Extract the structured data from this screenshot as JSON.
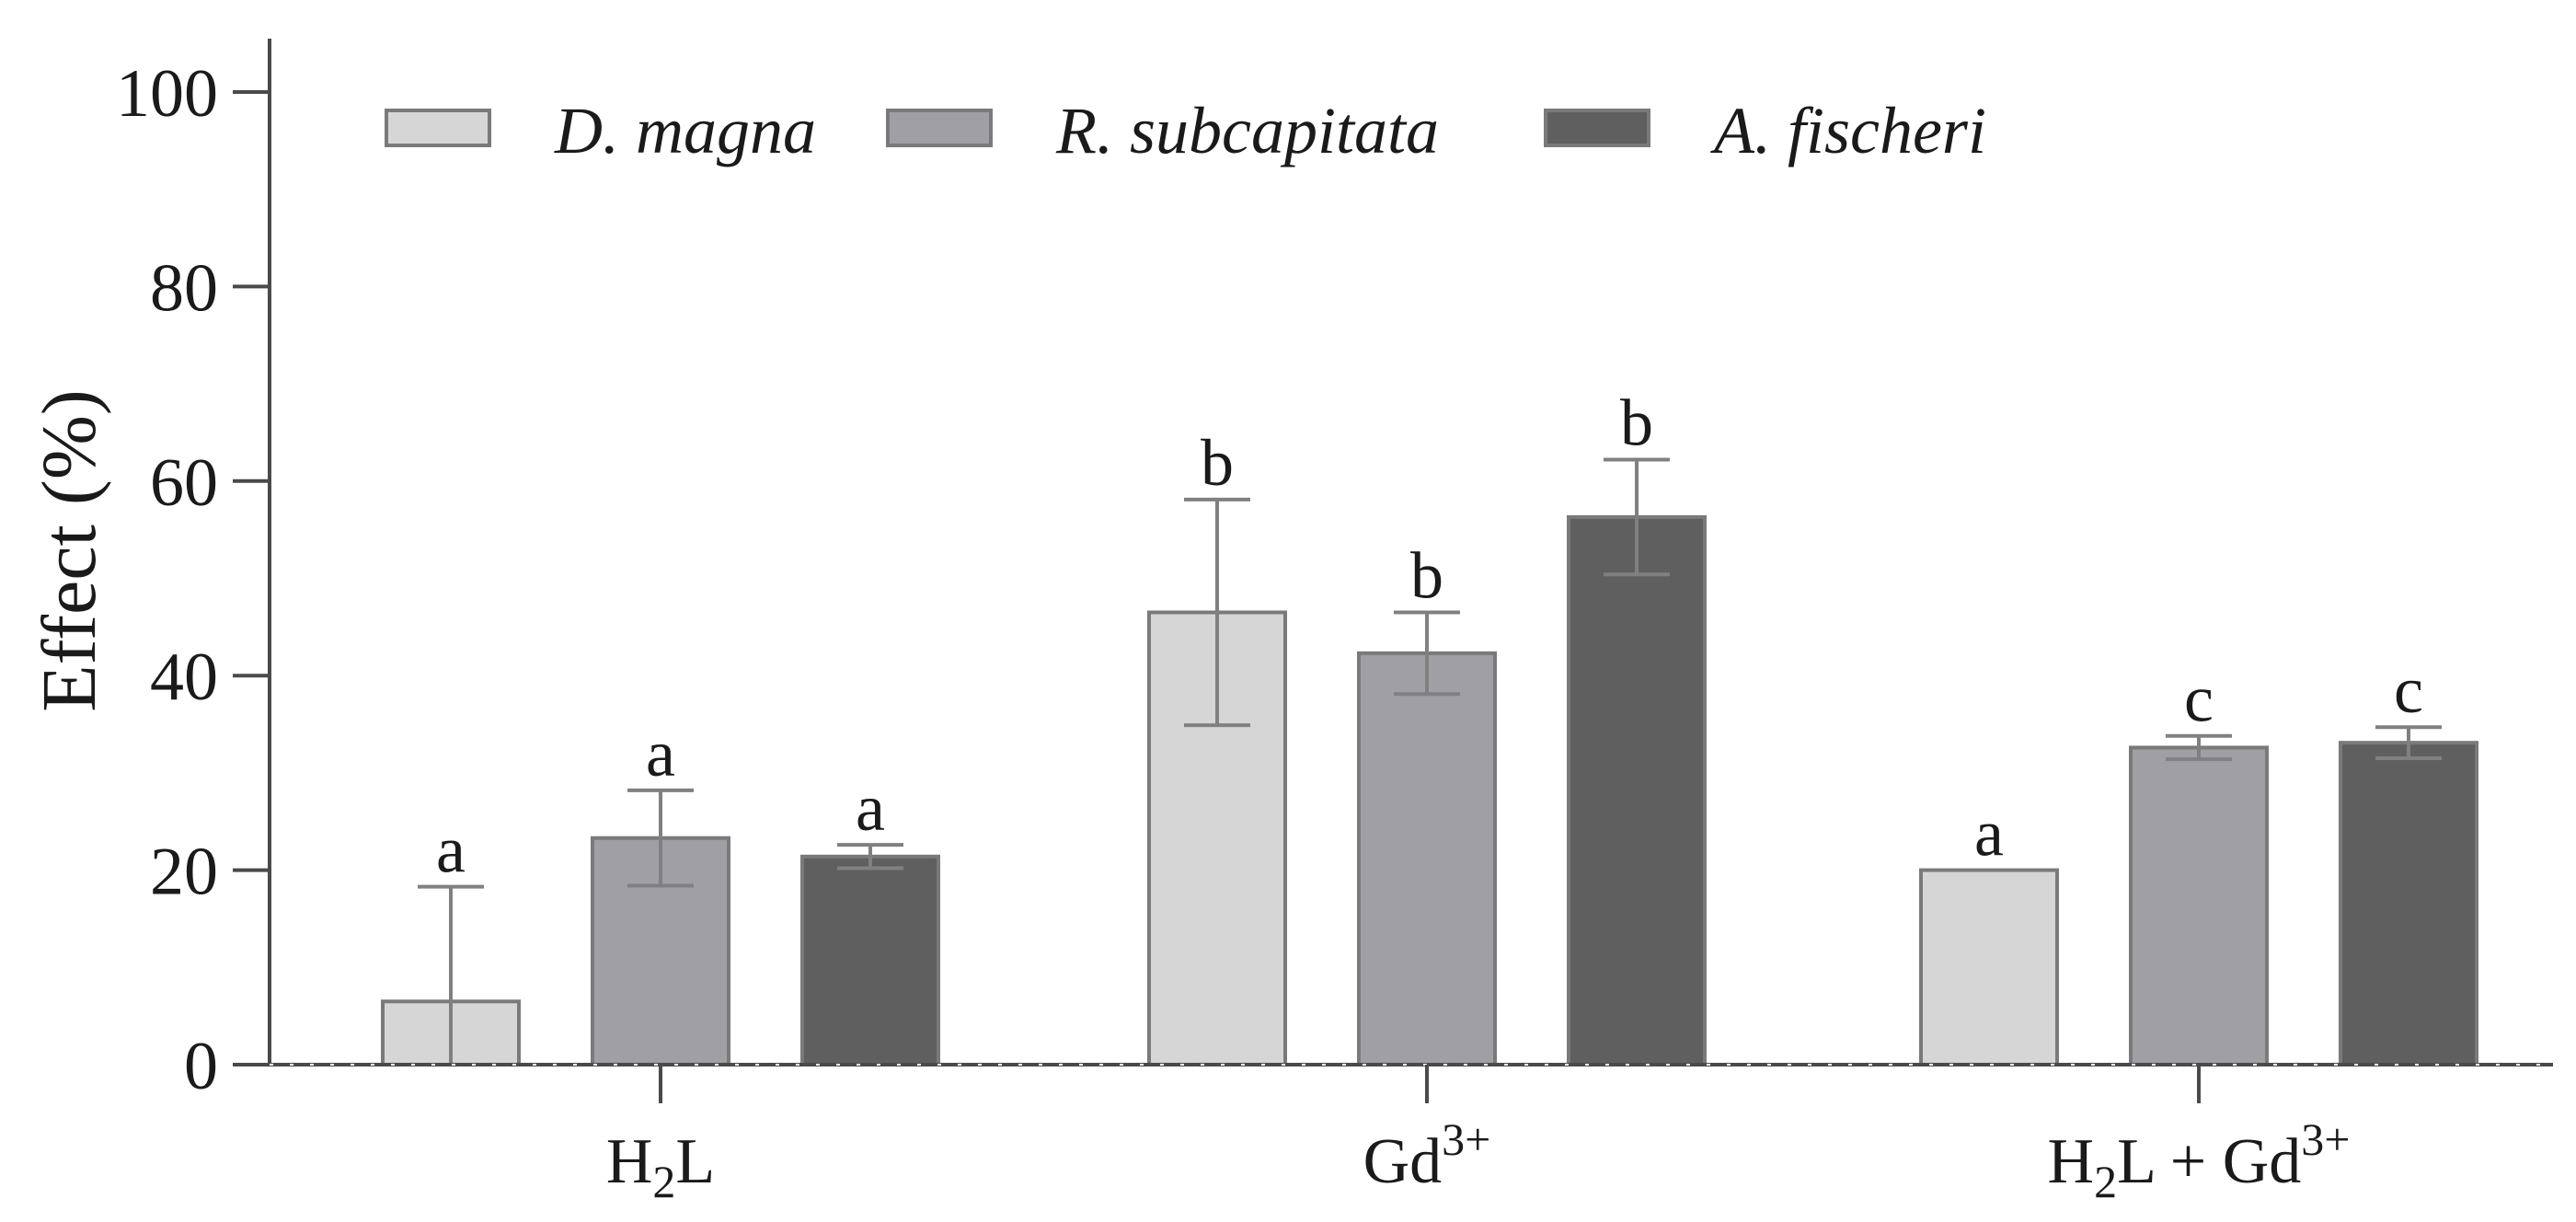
{
  "chart_data": {
    "type": "bar",
    "title": "",
    "xlabel": "",
    "ylabel": "Effect (%)",
    "ylim": [
      0,
      100
    ],
    "yticks": [
      "0",
      "20",
      "40",
      "60",
      "80",
      "100"
    ],
    "categories": [
      {
        "base": "H",
        "sub": "2",
        "tail": "L",
        "sup": "",
        "end": ""
      },
      {
        "base": "Gd",
        "sub": "",
        "tail": "",
        "sup": "3+",
        "end": ""
      },
      {
        "base": "H",
        "sub": "2",
        "tail": "L + Gd",
        "sup": "3+",
        "end": ""
      }
    ],
    "series": [
      {
        "name": "D. magna",
        "color": "#d6d6d6",
        "values": [
          6.5,
          46.5,
          20
        ],
        "errors": [
          11.8,
          11.6,
          0
        ],
        "labels": [
          "a",
          "b",
          "a"
        ]
      },
      {
        "name": "R. subcapitata",
        "color": "#a0a0a4",
        "values": [
          23.3,
          42.3,
          32.6
        ],
        "errors": [
          4.9,
          4.2,
          1.2
        ],
        "labels": [
          "a",
          "b",
          "c"
        ]
      },
      {
        "name": "A. fischeri",
        "color": "#5f5f5f",
        "values": [
          21.4,
          56.3,
          33.1
        ],
        "errors": [
          1.2,
          5.9,
          1.6
        ],
        "labels": [
          "a",
          "b",
          "c"
        ]
      }
    ],
    "legend": {
      "position": "top-left",
      "orientation": "horizontal"
    },
    "grid": false
  }
}
